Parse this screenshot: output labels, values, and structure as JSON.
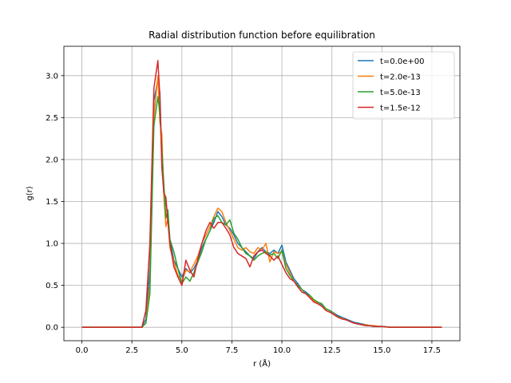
{
  "chart_data": {
    "type": "line",
    "title": "Radial distribution function before equilibration",
    "xlabel": "r (Å)",
    "ylabel": "g(r)",
    "xlim": [
      -0.9,
      18.9
    ],
    "ylim": [
      -0.16,
      3.35
    ],
    "xticks": [
      0.0,
      2.5,
      5.0,
      7.5,
      10.0,
      12.5,
      15.0,
      17.5
    ],
    "xtick_labels": [
      "0.0",
      "2.5",
      "5.0",
      "7.5",
      "10.0",
      "12.5",
      "15.0",
      "17.5"
    ],
    "yticks": [
      0.0,
      0.5,
      1.0,
      1.5,
      2.0,
      2.5,
      3.0
    ],
    "ytick_labels": [
      "0.0",
      "0.5",
      "1.0",
      "1.5",
      "2.0",
      "2.5",
      "3.0"
    ],
    "grid": true,
    "legend_position": "top-right",
    "series": [
      {
        "name": "t=0.0e+00",
        "color": "#1f77b4",
        "x": [
          0,
          2.8,
          3.0,
          3.2,
          3.4,
          3.6,
          3.8,
          3.9,
          4.0,
          4.1,
          4.2,
          4.3,
          4.4,
          4.6,
          4.8,
          5.0,
          5.2,
          5.4,
          5.6,
          5.8,
          6.0,
          6.2,
          6.4,
          6.6,
          6.8,
          7.0,
          7.2,
          7.4,
          7.6,
          7.8,
          8.0,
          8.2,
          8.4,
          8.6,
          8.8,
          9.0,
          9.2,
          9.4,
          9.6,
          9.8,
          10.0,
          10.2,
          10.4,
          10.6,
          10.8,
          11.0,
          11.2,
          11.4,
          11.6,
          11.8,
          12.0,
          12.2,
          12.4,
          12.6,
          12.8,
          13.0,
          13.2,
          13.4,
          13.6,
          13.8,
          14.0,
          14.2,
          14.4,
          14.6,
          14.8,
          15.0,
          15.4,
          16,
          17,
          18
        ],
        "y": [
          0,
          0,
          0,
          0.1,
          0.7,
          2.7,
          2.95,
          2.8,
          2.0,
          1.6,
          1.5,
          1.3,
          1.05,
          0.8,
          0.7,
          0.6,
          0.7,
          0.65,
          0.7,
          0.8,
          0.95,
          1.05,
          1.15,
          1.25,
          1.38,
          1.32,
          1.22,
          1.18,
          1.1,
          1.0,
          0.95,
          0.9,
          0.85,
          0.82,
          0.9,
          0.95,
          0.9,
          0.88,
          0.92,
          0.88,
          0.98,
          0.78,
          0.68,
          0.58,
          0.52,
          0.45,
          0.42,
          0.38,
          0.32,
          0.3,
          0.27,
          0.22,
          0.2,
          0.17,
          0.14,
          0.12,
          0.1,
          0.08,
          0.06,
          0.05,
          0.04,
          0.03,
          0.02,
          0.02,
          0.01,
          0.01,
          0,
          0,
          0,
          0
        ]
      },
      {
        "name": "t=2.0e-13",
        "color": "#ff7f0e",
        "x": [
          0,
          2.8,
          3.0,
          3.2,
          3.4,
          3.6,
          3.8,
          3.9,
          4.0,
          4.1,
          4.2,
          4.3,
          4.4,
          4.6,
          4.8,
          5.0,
          5.2,
          5.4,
          5.6,
          5.8,
          6.0,
          6.2,
          6.4,
          6.6,
          6.8,
          7.0,
          7.2,
          7.4,
          7.6,
          7.8,
          8.0,
          8.2,
          8.4,
          8.6,
          8.8,
          9.0,
          9.2,
          9.4,
          9.6,
          9.8,
          10.0,
          10.2,
          10.4,
          10.6,
          10.8,
          11.0,
          11.2,
          11.4,
          11.6,
          11.8,
          12.0,
          12.2,
          12.4,
          12.6,
          12.8,
          13.0,
          13.2,
          13.4,
          13.6,
          13.8,
          14.0,
          14.2,
          14.4,
          14.6,
          14.8,
          15.0,
          15.4,
          16,
          17,
          18
        ],
        "y": [
          0,
          0,
          0,
          0.05,
          0.5,
          2.5,
          3.0,
          2.45,
          2.3,
          1.55,
          1.2,
          1.3,
          0.95,
          0.78,
          0.62,
          0.55,
          0.68,
          0.66,
          0.75,
          0.85,
          1.0,
          1.1,
          1.2,
          1.32,
          1.42,
          1.38,
          1.25,
          1.15,
          1.05,
          0.95,
          0.92,
          0.95,
          0.9,
          0.88,
          0.95,
          0.92,
          1.0,
          0.78,
          0.9,
          0.88,
          0.9,
          0.75,
          0.65,
          0.55,
          0.5,
          0.45,
          0.4,
          0.36,
          0.32,
          0.28,
          0.25,
          0.22,
          0.2,
          0.16,
          0.12,
          0.11,
          0.09,
          0.07,
          0.05,
          0.04,
          0.03,
          0.03,
          0.02,
          0.02,
          0.01,
          0.01,
          0,
          0,
          0,
          0
        ]
      },
      {
        "name": "t=5.0e-13",
        "color": "#2ca02c",
        "x": [
          0,
          2.8,
          3.0,
          3.2,
          3.4,
          3.6,
          3.8,
          3.9,
          4.0,
          4.1,
          4.2,
          4.3,
          4.4,
          4.6,
          4.8,
          5.0,
          5.2,
          5.4,
          5.6,
          5.8,
          6.0,
          6.2,
          6.4,
          6.6,
          6.8,
          7.0,
          7.2,
          7.4,
          7.6,
          7.8,
          8.0,
          8.2,
          8.4,
          8.6,
          8.8,
          9.0,
          9.2,
          9.4,
          9.6,
          9.8,
          10.0,
          10.2,
          10.4,
          10.6,
          10.8,
          11.0,
          11.2,
          11.4,
          11.6,
          11.8,
          12.0,
          12.2,
          12.4,
          12.6,
          12.8,
          13.0,
          13.2,
          13.4,
          13.6,
          13.8,
          14.0,
          14.2,
          14.4,
          14.6,
          14.8,
          15.0,
          15.4,
          16,
          17,
          18
        ],
        "y": [
          0,
          0,
          0,
          0.05,
          0.4,
          2.4,
          2.75,
          2.55,
          2.1,
          1.7,
          1.3,
          1.4,
          1.05,
          0.9,
          0.7,
          0.52,
          0.6,
          0.55,
          0.65,
          0.78,
          0.9,
          1.05,
          1.15,
          1.3,
          1.33,
          1.25,
          1.22,
          1.28,
          1.12,
          1.05,
          0.95,
          0.88,
          0.85,
          0.8,
          0.85,
          0.88,
          0.9,
          0.86,
          0.88,
          0.82,
          0.92,
          0.7,
          0.62,
          0.55,
          0.5,
          0.45,
          0.4,
          0.38,
          0.33,
          0.3,
          0.28,
          0.22,
          0.2,
          0.15,
          0.13,
          0.1,
          0.09,
          0.07,
          0.05,
          0.04,
          0.03,
          0.02,
          0.02,
          0.01,
          0.01,
          0.01,
          0,
          0,
          0,
          0
        ]
      },
      {
        "name": "t=1.5e-12",
        "color": "#d62728",
        "x": [
          0,
          2.8,
          3.0,
          3.2,
          3.4,
          3.6,
          3.8,
          3.9,
          4.0,
          4.1,
          4.2,
          4.3,
          4.4,
          4.6,
          4.8,
          5.0,
          5.2,
          5.4,
          5.6,
          5.8,
          6.0,
          6.2,
          6.4,
          6.6,
          6.8,
          7.0,
          7.2,
          7.4,
          7.6,
          7.8,
          8.0,
          8.2,
          8.4,
          8.6,
          8.8,
          9.0,
          9.2,
          9.4,
          9.6,
          9.8,
          10.0,
          10.2,
          10.4,
          10.6,
          10.8,
          11.0,
          11.2,
          11.4,
          11.6,
          11.8,
          12.0,
          12.2,
          12.4,
          12.6,
          12.8,
          13.0,
          13.2,
          13.4,
          13.6,
          13.8,
          14.0,
          14.2,
          14.4,
          14.6,
          14.8,
          15.0,
          15.4,
          16,
          17,
          18
        ],
        "y": [
          0,
          0,
          0,
          0.2,
          1.0,
          2.85,
          3.18,
          2.75,
          1.9,
          1.6,
          1.55,
          1.25,
          1.0,
          0.72,
          0.6,
          0.5,
          0.8,
          0.68,
          0.6,
          0.82,
          1.0,
          1.15,
          1.25,
          1.18,
          1.25,
          1.25,
          1.18,
          1.1,
          0.95,
          0.88,
          0.85,
          0.82,
          0.72,
          0.85,
          0.9,
          0.92,
          0.88,
          0.85,
          0.8,
          0.85,
          0.75,
          0.65,
          0.58,
          0.55,
          0.48,
          0.42,
          0.4,
          0.35,
          0.3,
          0.28,
          0.25,
          0.2,
          0.18,
          0.15,
          0.12,
          0.1,
          0.09,
          0.07,
          0.05,
          0.04,
          0.03,
          0.02,
          0.02,
          0.01,
          0.01,
          0.01,
          0,
          0,
          0,
          0
        ]
      }
    ]
  }
}
